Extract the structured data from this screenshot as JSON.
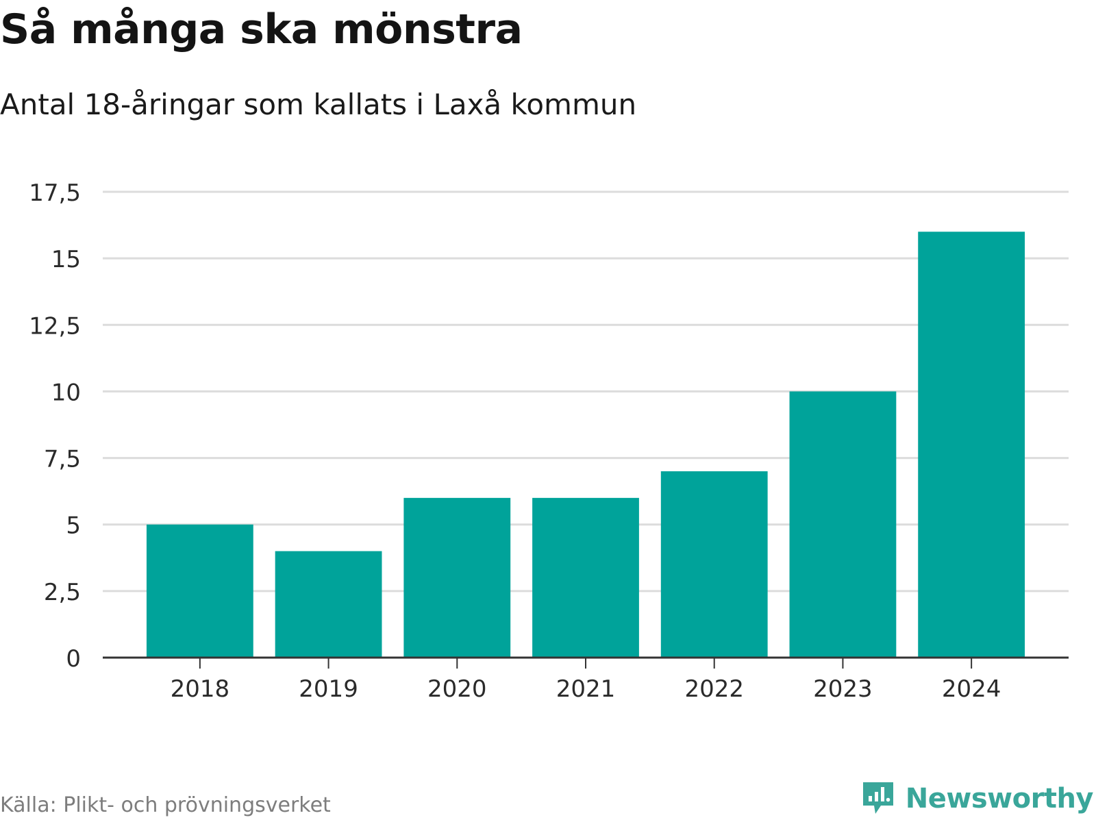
{
  "title": "Så många ska mönstra",
  "subtitle": "Antal 18-åringar som kallats i Laxå kommun",
  "source": "Källa: Plikt- och prövningsverket",
  "brand": {
    "name": "Newsworthy",
    "icon": "newsworthy-logo-icon",
    "color": "#3aa69a"
  },
  "chart_data": {
    "type": "bar",
    "title": "Så många ska mönstra",
    "subtitle": "Antal 18-åringar som kallats i Laxå kommun",
    "xlabel": "",
    "ylabel": "",
    "categories": [
      "2018",
      "2019",
      "2020",
      "2021",
      "2022",
      "2023",
      "2024"
    ],
    "values": [
      5,
      4,
      6,
      6,
      7,
      10,
      16
    ],
    "ylim": [
      0,
      17.5
    ],
    "yticks": [
      0,
      2.5,
      5,
      7.5,
      10,
      12.5,
      15,
      17.5
    ],
    "ytick_labels": [
      "0",
      "2,5",
      "5",
      "7,5",
      "10",
      "12,5",
      "15",
      "17,5"
    ],
    "grid": true,
    "bar_color": "#00a39a"
  }
}
